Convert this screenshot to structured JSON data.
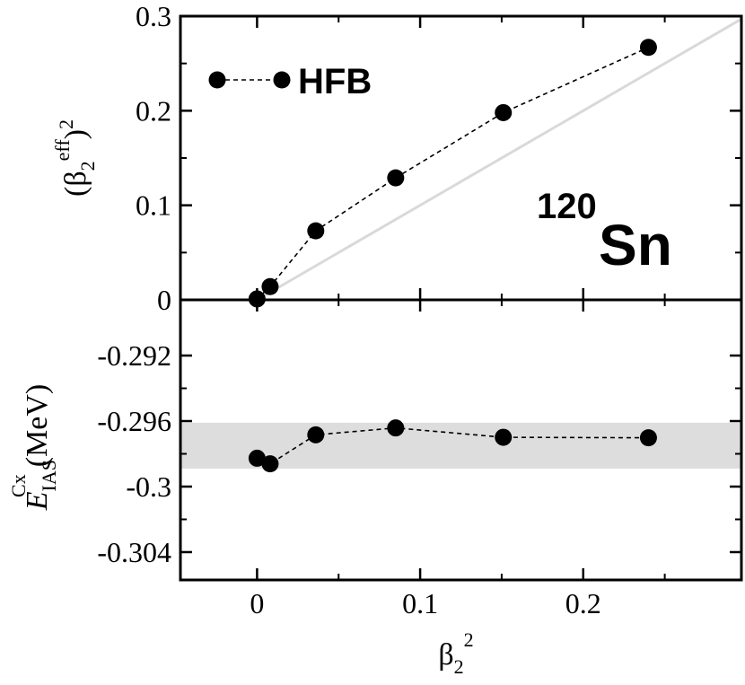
{
  "chart_data": [
    {
      "type": "line",
      "panel": "top",
      "x_tick_labels": [],
      "y_tick_labels": [
        "0",
        "0.1",
        "0.2",
        "0.3"
      ],
      "xlim": [
        -0.047,
        0.297
      ],
      "ylim": [
        0,
        0.3
      ],
      "ylabel": {
        "open": "(β",
        "sub": "2",
        "sup_eff": "eff",
        "close": ")",
        "sup_2": "2"
      },
      "legend": {
        "label": "HFB",
        "placement": "top-left"
      },
      "annotation": {
        "mass_number": "120",
        "element": "Sn"
      },
      "reference_line": {
        "style": "solid",
        "color": "#d9d9d9",
        "x": [
          0,
          0.297
        ],
        "y": [
          0,
          0.297
        ]
      },
      "series": [
        {
          "style": "dashed-with-circles",
          "x": [
            0,
            0.008,
            0.036,
            0.085,
            0.151,
            0.24
          ],
          "y": [
            0.001,
            0.014,
            0.073,
            0.129,
            0.198,
            0.267
          ]
        }
      ]
    },
    {
      "type": "line",
      "panel": "bottom",
      "x_tick_labels": [
        "0",
        "0.1",
        "0.2"
      ],
      "y_tick_labels": [
        "-0.292",
        "-0.296",
        "-0.3",
        "-0.304"
      ],
      "xlim": [
        -0.047,
        0.297
      ],
      "ylim": [
        -0.3057,
        -0.2886
      ],
      "xlabel": {
        "base": "β",
        "sub": "2",
        "sup": "2"
      },
      "ylabel": {
        "base": "E",
        "sub": "IAS",
        "sup": "Cx",
        "unit": "(MeV)"
      },
      "band": {
        "y_range": [
          -0.2989,
          -0.2961
        ],
        "color": "#dddddd"
      },
      "series": [
        {
          "style": "dashed-with-circles",
          "x": [
            0,
            0.008,
            0.036,
            0.085,
            0.151,
            0.24
          ],
          "y": [
            -0.29827,
            -0.29861,
            -0.29684,
            -0.29642,
            -0.29699,
            -0.29702
          ]
        }
      ]
    }
  ]
}
